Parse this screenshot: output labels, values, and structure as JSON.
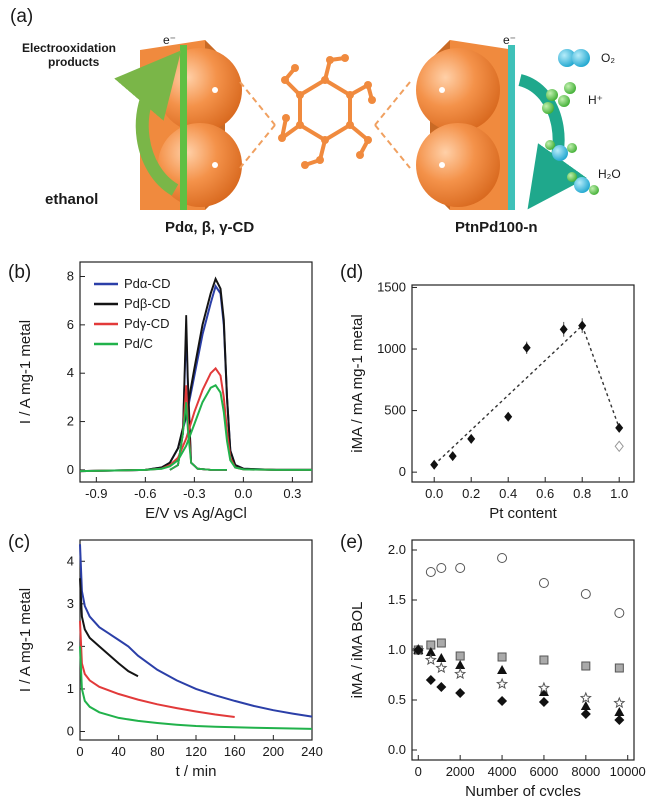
{
  "panel_labels": {
    "a": "(a)",
    "b": "(b)",
    "c": "(c)",
    "d": "(d)",
    "e": "(e)"
  },
  "schematic": {
    "electrooxidation": "Electrooxidation",
    "products": "products",
    "electron_left": "e⁻",
    "electron_right": "e⁻",
    "ethanol": "ethanol",
    "o2": "O₂",
    "hplus": "H⁺",
    "h2o": "H₂O",
    "pd_cd_label": "Pdα, β, γ-CD",
    "ptpd_label": "PtnPd100-n",
    "colors": {
      "orange": "#f4924a",
      "green_arrow": "#7ab648",
      "cyan": "#36b6d8",
      "green_ball": "#5cc34a",
      "teal_arrow": "#1fa88c"
    }
  },
  "chart_data": [
    {
      "id": "b",
      "type": "line",
      "xlabel": "E/V vs Ag/AgCl",
      "ylabel": "I / A mg-1 metal",
      "xlim": [
        -1.0,
        0.42
      ],
      "ylim": [
        -0.5,
        8.6
      ],
      "xticks": [
        "-0.9",
        "-0.6",
        "-0.3",
        "0.0",
        "0.3"
      ],
      "xtick_values": [
        -0.9,
        -0.6,
        -0.3,
        0.0,
        0.3
      ],
      "yticks": [
        "0",
        "2",
        "4",
        "6",
        "8"
      ],
      "ytick_values": [
        0,
        2,
        4,
        6,
        8
      ],
      "legend_position": "top-left",
      "series": [
        {
          "name": "Pdα-CD",
          "color": "#2b3fa8",
          "peak": 7.6,
          "back_peak": 5.8,
          "x": [
            -1.0,
            -0.6,
            -0.5,
            -0.45,
            -0.4,
            -0.35,
            -0.3,
            -0.25,
            -0.2,
            -0.17,
            -0.14,
            -0.12,
            -0.1,
            -0.08,
            -0.05,
            0.0,
            0.2,
            0.42
          ],
          "y": [
            -0.05,
            0.0,
            0.1,
            0.3,
            0.9,
            2.2,
            3.9,
            5.6,
            6.9,
            7.6,
            7.3,
            6.0,
            3.0,
            0.8,
            0.2,
            0.05,
            0.0,
            0.0
          ]
        },
        {
          "name": "Pdβ-CD",
          "color": "#141414",
          "peak": 7.9,
          "back_peak": 6.4,
          "x": [
            -1.0,
            -0.6,
            -0.5,
            -0.45,
            -0.4,
            -0.35,
            -0.3,
            -0.25,
            -0.2,
            -0.17,
            -0.14,
            -0.12,
            -0.1,
            -0.08,
            -0.05,
            0.0,
            0.2,
            0.42
          ],
          "y": [
            -0.05,
            0.0,
            0.1,
            0.3,
            0.9,
            2.3,
            4.2,
            6.0,
            7.3,
            7.9,
            7.5,
            6.2,
            3.0,
            0.8,
            0.2,
            0.05,
            0.0,
            0.0
          ]
        },
        {
          "name": "Pdγ-CD",
          "color": "#e23a3a",
          "peak": 4.2,
          "back_peak": 3.5,
          "x": [
            -1.0,
            -0.6,
            -0.5,
            -0.45,
            -0.4,
            -0.35,
            -0.3,
            -0.25,
            -0.2,
            -0.17,
            -0.14,
            -0.12,
            -0.1,
            -0.08,
            -0.05,
            0.0,
            0.2,
            0.42
          ],
          "y": [
            -0.05,
            0.0,
            0.05,
            0.2,
            0.5,
            1.3,
            2.4,
            3.3,
            4.0,
            4.2,
            3.9,
            3.0,
            1.6,
            0.5,
            0.1,
            0.02,
            0.0,
            0.0
          ]
        },
        {
          "name": "Pd/C",
          "color": "#21b24b",
          "peak": 3.5,
          "back_peak": 2.8,
          "x": [
            -1.0,
            -0.6,
            -0.5,
            -0.45,
            -0.4,
            -0.35,
            -0.3,
            -0.25,
            -0.2,
            -0.17,
            -0.14,
            -0.12,
            -0.1,
            -0.08,
            -0.05,
            0.0,
            0.2,
            0.42
          ],
          "y": [
            -0.05,
            0.0,
            0.05,
            0.15,
            0.4,
            1.0,
            1.9,
            2.8,
            3.4,
            3.5,
            3.2,
            2.4,
            1.2,
            0.4,
            0.1,
            0.02,
            0.0,
            0.0
          ]
        }
      ]
    },
    {
      "id": "c",
      "type": "line",
      "xlabel": "t / min",
      "ylabel": "I / A mg-1 metal",
      "xlim": [
        0,
        240
      ],
      "ylim": [
        -0.2,
        4.5
      ],
      "xticks": [
        "0",
        "40",
        "80",
        "120",
        "160",
        "200",
        "240"
      ],
      "xtick_values": [
        0,
        40,
        80,
        120,
        160,
        200,
        240
      ],
      "yticks": [
        "0",
        "1",
        "2",
        "3",
        "4"
      ],
      "ytick_values": [
        0,
        1,
        2,
        3,
        4
      ],
      "series": [
        {
          "name": "Pdα-CD",
          "color": "#2b3fa8",
          "x": [
            0,
            2,
            5,
            10,
            20,
            30,
            40,
            50,
            60,
            80,
            100,
            120,
            140,
            160,
            180,
            200,
            220,
            240
          ],
          "y": [
            4.4,
            3.3,
            2.95,
            2.7,
            2.45,
            2.3,
            2.15,
            2.0,
            1.78,
            1.45,
            1.2,
            1.0,
            0.85,
            0.72,
            0.6,
            0.5,
            0.42,
            0.35
          ]
        },
        {
          "name": "Pdβ-CD",
          "color": "#141414",
          "x": [
            0,
            2,
            5,
            10,
            20,
            30,
            40,
            50,
            60
          ],
          "y": [
            3.6,
            2.7,
            2.4,
            2.2,
            2.0,
            1.8,
            1.6,
            1.42,
            1.3
          ]
        },
        {
          "name": "Pdγ-CD",
          "color": "#e23a3a",
          "x": [
            0,
            2,
            5,
            10,
            20,
            40,
            60,
            80,
            100,
            120,
            140,
            160
          ],
          "y": [
            2.6,
            1.6,
            1.35,
            1.2,
            1.05,
            0.88,
            0.75,
            0.64,
            0.55,
            0.47,
            0.4,
            0.34
          ]
        },
        {
          "name": "Pd/C",
          "color": "#21b24b",
          "x": [
            0,
            2,
            5,
            10,
            20,
            40,
            60,
            80,
            100,
            120,
            140,
            160,
            180,
            200,
            220,
            240
          ],
          "y": [
            2.0,
            1.0,
            0.72,
            0.58,
            0.45,
            0.32,
            0.25,
            0.2,
            0.16,
            0.13,
            0.11,
            0.1,
            0.09,
            0.08,
            0.07,
            0.06
          ]
        }
      ]
    },
    {
      "id": "d",
      "type": "scatter",
      "xlabel": "Pt content",
      "ylabel": "iMA / mA mg-1 metal",
      "xlim": [
        -0.12,
        1.08
      ],
      "ylim": [
        -80,
        1520
      ],
      "xticks": [
        "0.0",
        "0.2",
        "0.4",
        "0.6",
        "0.8",
        "1.0"
      ],
      "xtick_values": [
        0.0,
        0.2,
        0.4,
        0.6,
        0.8,
        1.0
      ],
      "yticks": [
        "0",
        "500",
        "1000",
        "1500"
      ],
      "ytick_values": [
        0,
        500,
        1000,
        1500
      ],
      "points": [
        {
          "x": 0.0,
          "y": 60,
          "err": 15
        },
        {
          "x": 0.1,
          "y": 130,
          "err": 15
        },
        {
          "x": 0.2,
          "y": 270,
          "err": 20
        },
        {
          "x": 0.4,
          "y": 450,
          "err": 25
        },
        {
          "x": 0.5,
          "y": 1010,
          "err": 50
        },
        {
          "x": 0.7,
          "y": 1160,
          "err": 60
        },
        {
          "x": 0.8,
          "y": 1190,
          "err": 60
        },
        {
          "x": 1.0,
          "y": 360,
          "err": 20
        }
      ],
      "open_points": [
        {
          "x": 1.0,
          "y": 210
        }
      ],
      "trend_lines": [
        {
          "x": [
            0.0,
            0.8
          ],
          "y": [
            60,
            1190
          ]
        },
        {
          "x": [
            0.8,
            1.0
          ],
          "y": [
            1190,
            360
          ]
        }
      ]
    },
    {
      "id": "e",
      "type": "scatter",
      "xlabel": "Number of cycles",
      "ylabel": "iMA / iMA BOL",
      "xlim": [
        -300,
        10300
      ],
      "ylim": [
        -0.1,
        2.1
      ],
      "xticks": [
        "0",
        "2000",
        "4000",
        "6000",
        "8000",
        "10000"
      ],
      "xtick_values": [
        0,
        2000,
        4000,
        6000,
        8000,
        10000
      ],
      "yticks": [
        "0.0",
        "0.5",
        "1.0",
        "1.5",
        "2.0"
      ],
      "ytick_values": [
        0.0,
        0.5,
        1.0,
        1.5,
        2.0
      ],
      "series": [
        {
          "marker": "open-circle",
          "x": [
            0,
            600,
            1100,
            2000,
            4000,
            6000,
            8000,
            9600
          ],
          "y": [
            1.0,
            1.78,
            1.82,
            1.82,
            1.92,
            1.67,
            1.56,
            1.37
          ]
        },
        {
          "marker": "gray-square",
          "x": [
            0,
            600,
            1100,
            2000,
            4000,
            6000,
            8000,
            9600
          ],
          "y": [
            1.0,
            1.05,
            1.07,
            0.94,
            0.93,
            0.9,
            0.84,
            0.82
          ]
        },
        {
          "marker": "triangle",
          "x": [
            0,
            600,
            1100,
            2000,
            4000,
            6000,
            8000,
            9600
          ],
          "y": [
            1.0,
            0.98,
            0.92,
            0.85,
            0.8,
            0.58,
            0.44,
            0.38
          ]
        },
        {
          "marker": "open-star",
          "x": [
            0,
            600,
            1100,
            2000,
            4000,
            6000,
            8000,
            9600
          ],
          "y": [
            1.0,
            0.9,
            0.82,
            0.76,
            0.66,
            0.62,
            0.52,
            0.47
          ]
        },
        {
          "marker": "diamond",
          "x": [
            0,
            600,
            1100,
            2000,
            4000,
            6000,
            8000,
            9600
          ],
          "y": [
            1.0,
            0.7,
            0.63,
            0.57,
            0.49,
            0.48,
            0.36,
            0.3
          ]
        }
      ]
    }
  ]
}
